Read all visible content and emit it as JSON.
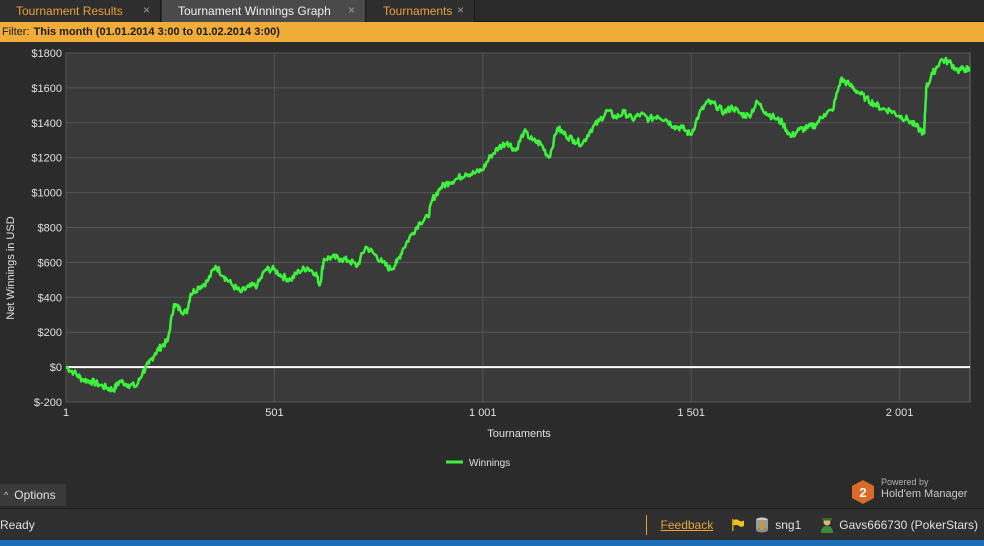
{
  "tabs": [
    {
      "label": "Tournament Results",
      "close": "×"
    },
    {
      "label": "Tournament Winnings Graph",
      "close": "×"
    },
    {
      "label": "Tournaments",
      "close": "×"
    }
  ],
  "filter": {
    "label": "Filter:",
    "value": "This month (01.01.2014 3:00 to 01.02.2014 3:00)"
  },
  "colors": {
    "accent": "#f0ac38",
    "line": "#3df23d",
    "plot_bg": "#3a3a3a",
    "grid": "#555555",
    "zero_line": "#ffffff"
  },
  "chart_data": {
    "type": "line",
    "title": "",
    "xlabel": "Tournaments",
    "ylabel": "Net Winnings in USD",
    "xlim": [
      1,
      2170
    ],
    "ylim": [
      -200,
      1800
    ],
    "x_ticks": [
      {
        "value": 1,
        "label": "1"
      },
      {
        "value": 501,
        "label": "501"
      },
      {
        "value": 1001,
        "label": "1 001"
      },
      {
        "value": 1501,
        "label": "1 501"
      },
      {
        "value": 2001,
        "label": "2 001"
      }
    ],
    "y_ticks": [
      {
        "value": 1800,
        "label": "$1800"
      },
      {
        "value": 1600,
        "label": "$1600"
      },
      {
        "value": 1400,
        "label": "$1400"
      },
      {
        "value": 1200,
        "label": "$1200"
      },
      {
        "value": 1000,
        "label": "$1000"
      },
      {
        "value": 800,
        "label": "$800"
      },
      {
        "value": 600,
        "label": "$600"
      },
      {
        "value": 400,
        "label": "$400"
      },
      {
        "value": 200,
        "label": "$200"
      },
      {
        "value": 0,
        "label": "$0"
      },
      {
        "value": -200,
        "label": "$-200"
      }
    ],
    "grid": true,
    "legend_position": "bottom-center",
    "series": [
      {
        "name": "Winnings",
        "points": [
          [
            1,
            0
          ],
          [
            20,
            -30
          ],
          [
            40,
            -70
          ],
          [
            60,
            -80
          ],
          [
            80,
            -100
          ],
          [
            100,
            -120
          ],
          [
            115,
            -130
          ],
          [
            130,
            -80
          ],
          [
            150,
            -100
          ],
          [
            170,
            -110
          ],
          [
            185,
            -30
          ],
          [
            200,
            20
          ],
          [
            215,
            80
          ],
          [
            230,
            120
          ],
          [
            245,
            150
          ],
          [
            260,
            360
          ],
          [
            275,
            330
          ],
          [
            290,
            310
          ],
          [
            300,
            420
          ],
          [
            320,
            460
          ],
          [
            340,
            490
          ],
          [
            360,
            580
          ],
          [
            380,
            520
          ],
          [
            400,
            470
          ],
          [
            420,
            430
          ],
          [
            440,
            460
          ],
          [
            460,
            470
          ],
          [
            480,
            560
          ],
          [
            500,
            560
          ],
          [
            520,
            520
          ],
          [
            540,
            500
          ],
          [
            560,
            550
          ],
          [
            580,
            570
          ],
          [
            600,
            540
          ],
          [
            610,
            470
          ],
          [
            620,
            620
          ],
          [
            640,
            630
          ],
          [
            660,
            620
          ],
          [
            680,
            610
          ],
          [
            700,
            580
          ],
          [
            720,
            690
          ],
          [
            740,
            650
          ],
          [
            760,
            600
          ],
          [
            780,
            560
          ],
          [
            795,
            600
          ],
          [
            810,
            680
          ],
          [
            830,
            760
          ],
          [
            850,
            830
          ],
          [
            870,
            860
          ],
          [
            880,
            960
          ],
          [
            900,
            1030
          ],
          [
            920,
            1060
          ],
          [
            940,
            1080
          ],
          [
            960,
            1110
          ],
          [
            980,
            1110
          ],
          [
            1000,
            1130
          ],
          [
            1020,
            1210
          ],
          [
            1040,
            1260
          ],
          [
            1060,
            1290
          ],
          [
            1080,
            1240
          ],
          [
            1100,
            1350
          ],
          [
            1120,
            1300
          ],
          [
            1140,
            1280
          ],
          [
            1160,
            1200
          ],
          [
            1180,
            1370
          ],
          [
            1200,
            1330
          ],
          [
            1220,
            1300
          ],
          [
            1240,
            1280
          ],
          [
            1260,
            1360
          ],
          [
            1280,
            1410
          ],
          [
            1300,
            1470
          ],
          [
            1320,
            1430
          ],
          [
            1340,
            1460
          ],
          [
            1360,
            1420
          ],
          [
            1380,
            1450
          ],
          [
            1400,
            1420
          ],
          [
            1420,
            1440
          ],
          [
            1440,
            1420
          ],
          [
            1460,
            1380
          ],
          [
            1480,
            1370
          ],
          [
            1500,
            1330
          ],
          [
            1520,
            1450
          ],
          [
            1540,
            1520
          ],
          [
            1560,
            1500
          ],
          [
            1580,
            1460
          ],
          [
            1600,
            1490
          ],
          [
            1620,
            1450
          ],
          [
            1640,
            1440
          ],
          [
            1660,
            1520
          ],
          [
            1680,
            1460
          ],
          [
            1700,
            1430
          ],
          [
            1720,
            1400
          ],
          [
            1740,
            1320
          ],
          [
            1760,
            1360
          ],
          [
            1780,
            1370
          ],
          [
            1800,
            1390
          ],
          [
            1820,
            1450
          ],
          [
            1840,
            1470
          ],
          [
            1860,
            1650
          ],
          [
            1880,
            1620
          ],
          [
            1900,
            1580
          ],
          [
            1920,
            1540
          ],
          [
            1940,
            1510
          ],
          [
            1960,
            1480
          ],
          [
            1980,
            1470
          ],
          [
            2000,
            1440
          ],
          [
            2020,
            1420
          ],
          [
            2040,
            1380
          ],
          [
            2060,
            1340
          ],
          [
            2065,
            1600
          ],
          [
            2080,
            1680
          ],
          [
            2100,
            1760
          ],
          [
            2120,
            1750
          ],
          [
            2140,
            1700
          ],
          [
            2160,
            1710
          ],
          [
            2170,
            1700
          ]
        ]
      }
    ]
  },
  "options": {
    "caret": "^",
    "label": "Options"
  },
  "powered": {
    "small": "Powered by",
    "name": "Hold'em Manager",
    "badge": "2"
  },
  "status": {
    "ready": "Ready",
    "feedback": "Feedback",
    "database": "sng1",
    "player": "Gavs666730 (PokerStars)"
  }
}
